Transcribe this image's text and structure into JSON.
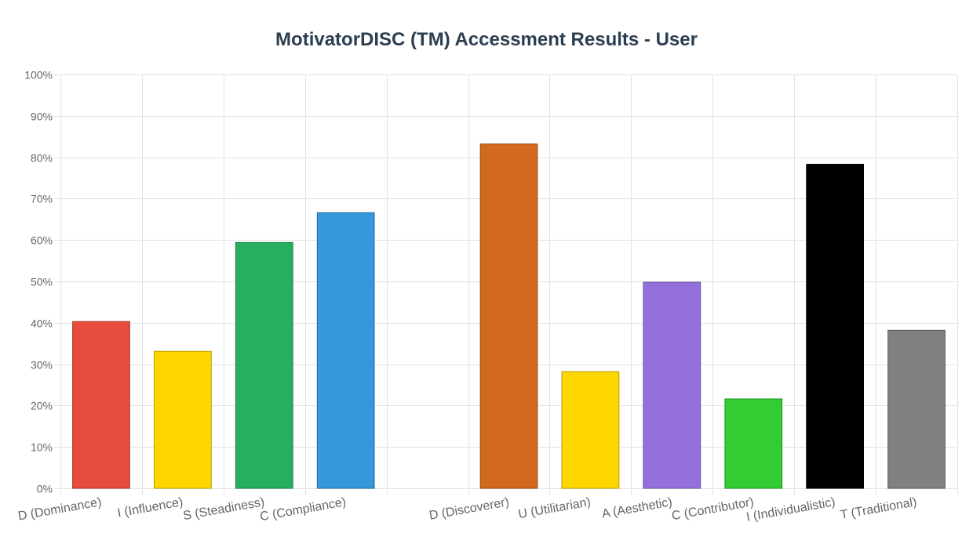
{
  "chart_data": {
    "type": "bar",
    "title": "MotivatorDISC (TM) Accessment Results - User",
    "xlabel": "",
    "ylabel": "",
    "ylim": [
      0,
      100
    ],
    "y_tick_values": [
      0,
      10,
      20,
      30,
      40,
      50,
      60,
      70,
      80,
      90,
      100
    ],
    "y_tick_labels": [
      "0%",
      "10%",
      "20%",
      "30%",
      "40%",
      "50%",
      "60%",
      "70%",
      "80%",
      "90%",
      "100%"
    ],
    "grid": true,
    "legend": "none",
    "categories": [
      "D (Dominance)",
      "I (Influence)",
      "S (Steadiness)",
      "C (Compliance)",
      "",
      "D (Discoverer)",
      "U (Utilitarian)",
      "A (Aesthetic)",
      "C (Contributor)",
      "I (Individualistic)",
      "T (Traditional)"
    ],
    "values": [
      40.3,
      33.1,
      59.4,
      66.6,
      null,
      83.2,
      28.2,
      49.8,
      21.6,
      78.3,
      38.2
    ],
    "colors": [
      "#e74c3c",
      "#ffd700",
      "#27ae60",
      "#3498db",
      null,
      "#d2691e",
      "#ffd700",
      "#9370db",
      "#32cd32",
      "#000000",
      "#808080"
    ]
  }
}
